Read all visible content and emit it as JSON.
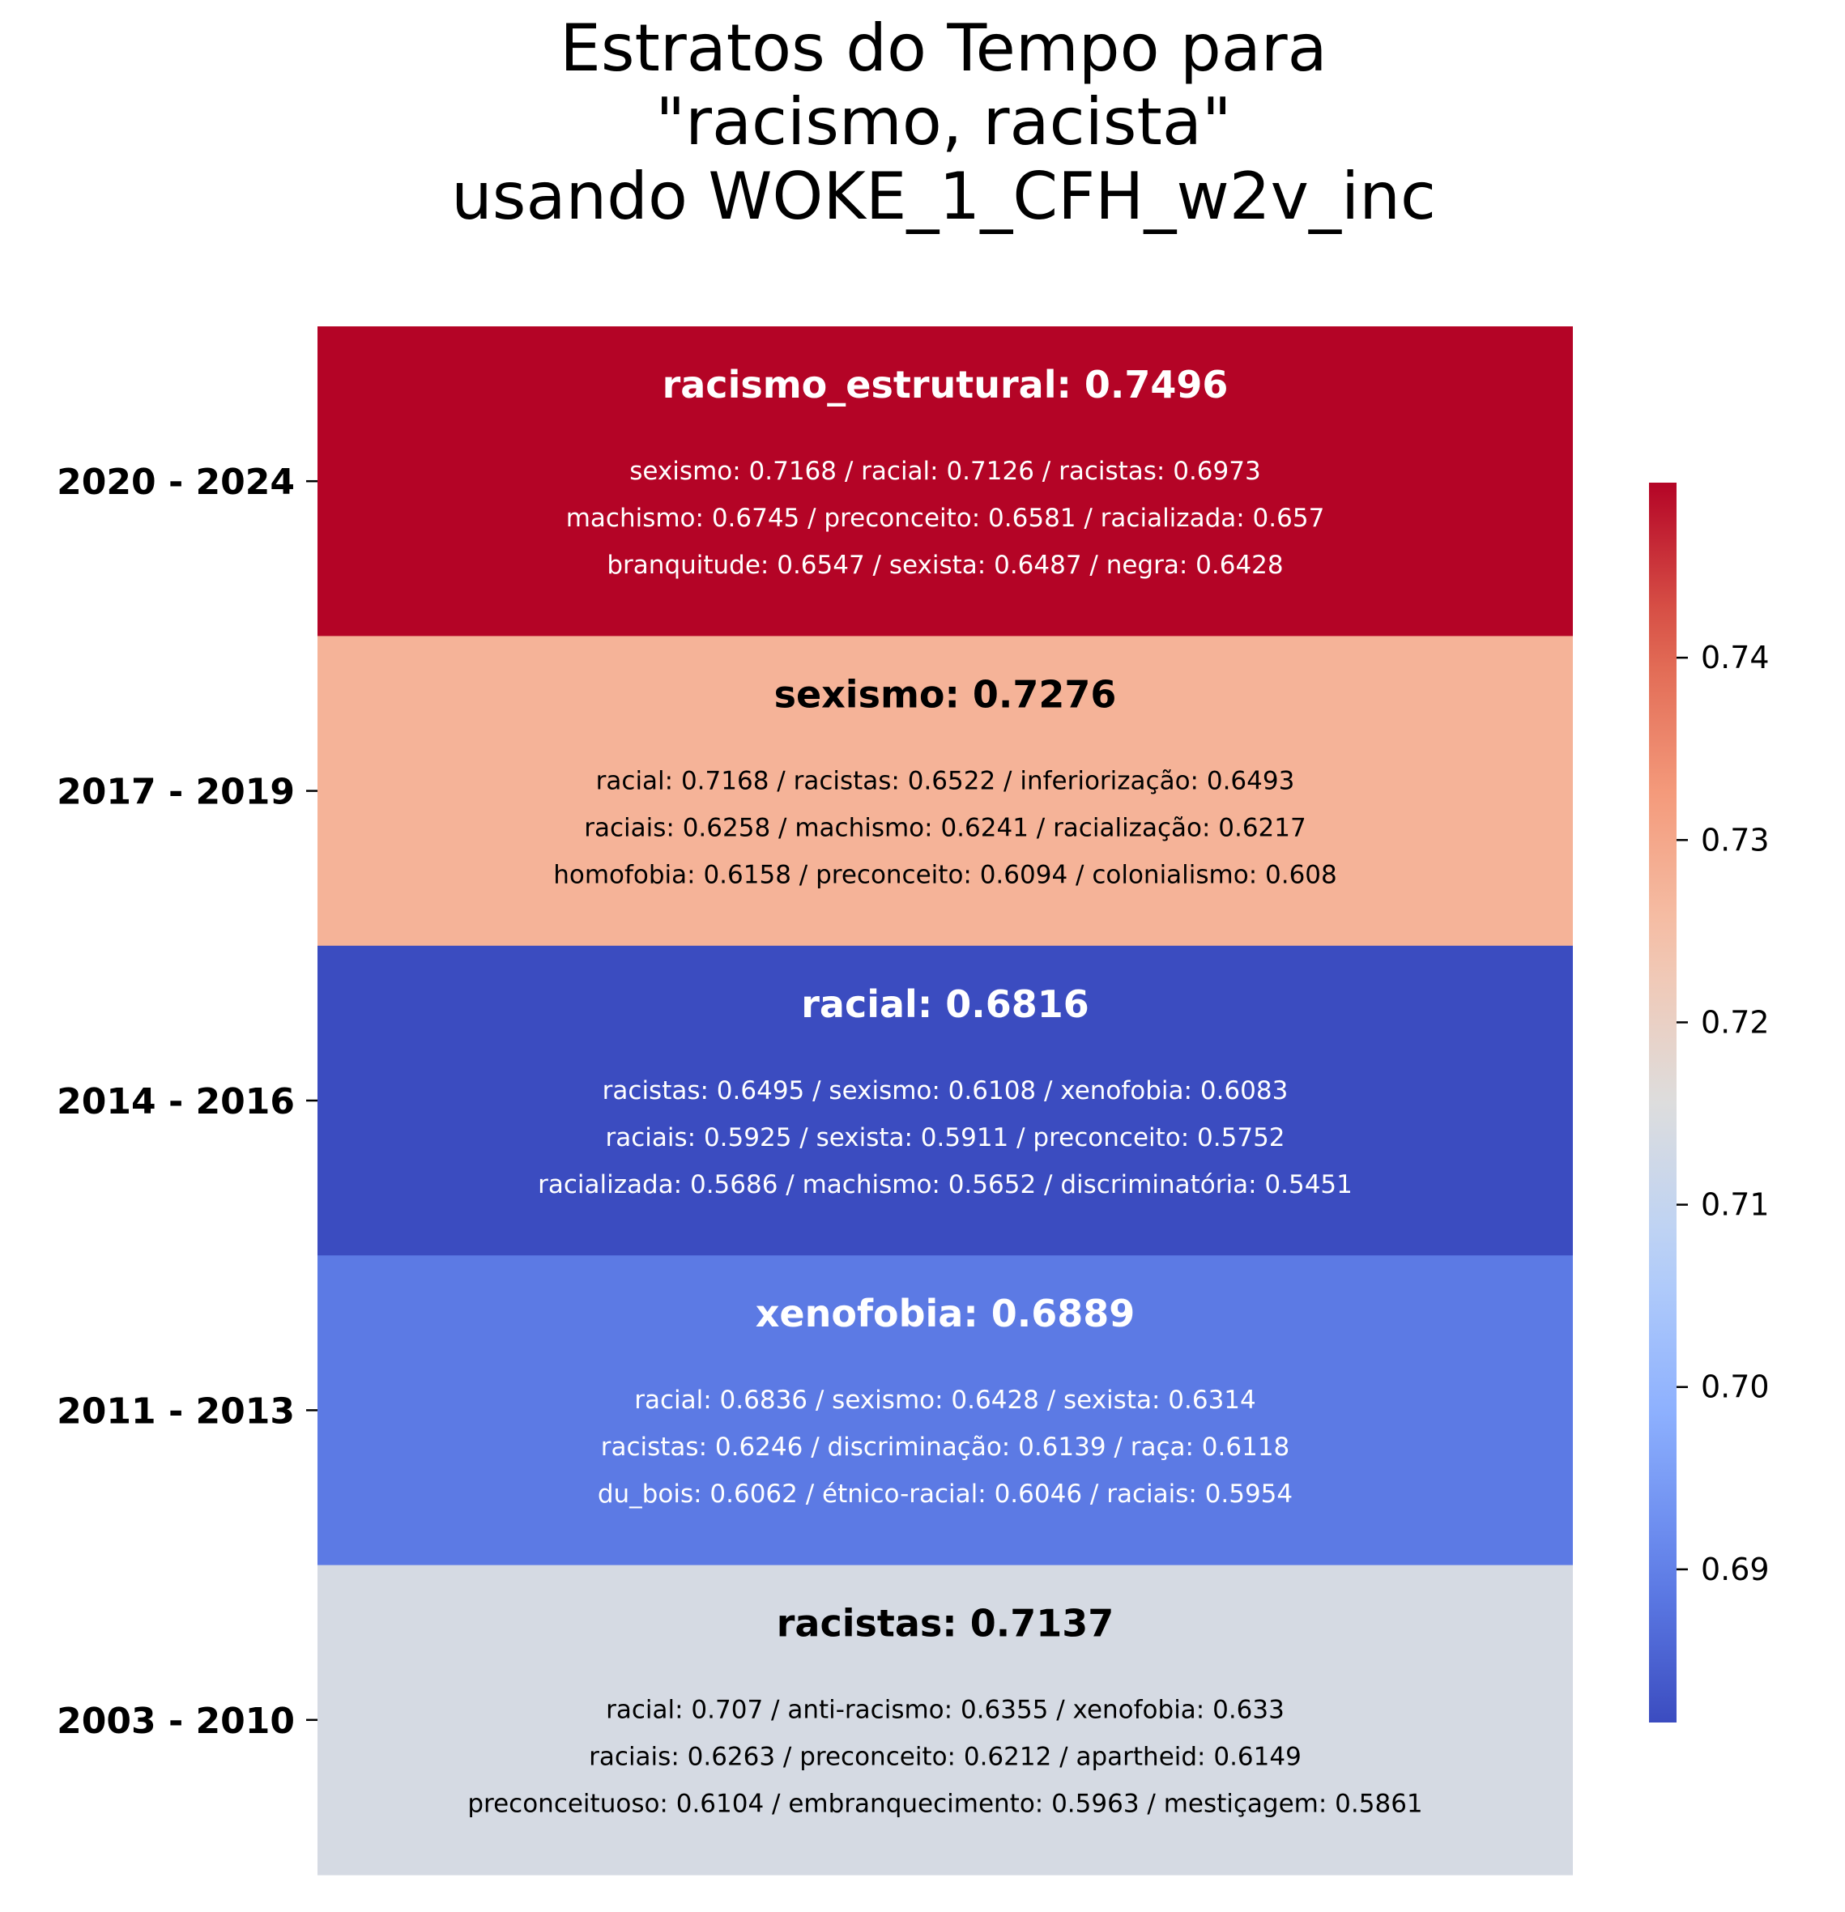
{
  "chart_data": {
    "type": "heatmap",
    "title_lines": [
      "Estratos do Tempo para",
      "\"racismo, racista\"",
      "usando WOKE_1_CFH_w2v_inc"
    ],
    "colormap": "coolwarm",
    "colorbar": {
      "vmin": 0.6816,
      "vmax": 0.7496,
      "ticks": [
        0.69,
        0.7,
        0.71,
        0.72,
        0.73,
        0.74
      ],
      "tick_labels": [
        "0.69",
        "0.70",
        "0.71",
        "0.72",
        "0.73",
        "0.74"
      ],
      "placement": "right"
    },
    "rows": [
      {
        "period": "2020 - 2024",
        "value": 0.7496,
        "title": "racismo_estrutural: 0.7496",
        "lines": [
          "sexismo: 0.7168 / racial: 0.7126 / racistas: 0.6973",
          "machismo: 0.6745 / preconceito: 0.6581 / racializada: 0.657",
          "branquitude: 0.6547 / sexista: 0.6487 / negra: 0.6428"
        ]
      },
      {
        "period": "2017 - 2019",
        "value": 0.7276,
        "title": "sexismo: 0.7276",
        "lines": [
          "racial: 0.7168 / racistas: 0.6522 / inferiorização: 0.6493",
          "raciais: 0.6258 / machismo: 0.6241 / racialização: 0.6217",
          "homofobia: 0.6158 / preconceito: 0.6094 / colonialismo: 0.608"
        ]
      },
      {
        "period": "2014 - 2016",
        "value": 0.6816,
        "title": "racial: 0.6816",
        "lines": [
          "racistas: 0.6495 / sexismo: 0.6108 / xenofobia: 0.6083",
          "raciais: 0.5925 / sexista: 0.5911 / preconceito: 0.5752",
          "racializada: 0.5686 / machismo: 0.5652 / discriminatória: 0.5451"
        ]
      },
      {
        "period": "2011 - 2013",
        "value": 0.6889,
        "title": "xenofobia: 0.6889",
        "lines": [
          "racial: 0.6836 / sexismo: 0.6428 / sexista: 0.6314",
          "racistas: 0.6246 / discriminação: 0.6139 / raça: 0.6118",
          "du_bois: 0.6062 / étnico-racial: 0.6046 / raciais: 0.5954"
        ]
      },
      {
        "period": "2003 - 2010",
        "value": 0.7137,
        "title": "racistas: 0.7137",
        "lines": [
          "racial: 0.707 / anti-racismo: 0.6355 / xenofobia: 0.633",
          "raciais: 0.6263 / preconceito: 0.6212 / apartheid: 0.6149",
          "preconceituoso: 0.6104 / embranquecimento: 0.5963 / mestiçagem: 0.5861"
        ]
      }
    ]
  }
}
